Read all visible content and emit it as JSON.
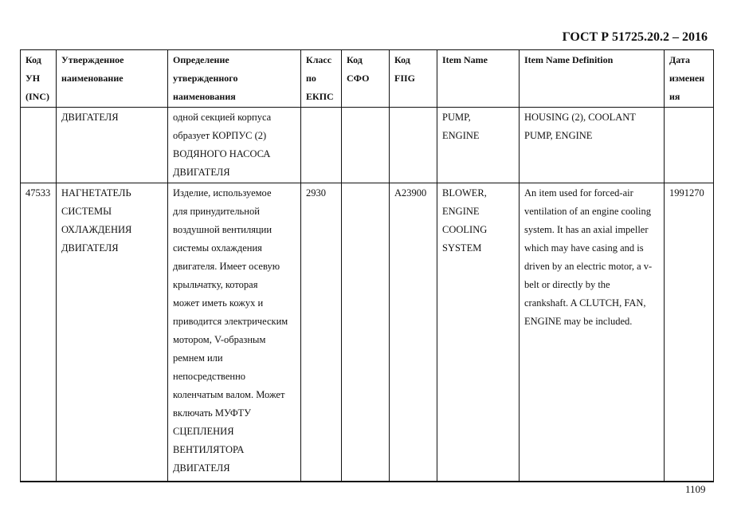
{
  "document_title": "ГОСТ Р 51725.20.2 – 2016",
  "page_number": "1109",
  "table": {
    "headers": [
      "Код\nУН\n(INC)",
      "Утвержденное\nнаименование",
      "Определение\nутвержденного\nнаименования",
      "Класс\nпо\nЕКПС",
      "Код\nСФО",
      "Код\nFIIG",
      "Item Name",
      "Item Name Definition",
      "Дата\nизменен\nия"
    ],
    "rows": [
      [
        "",
        "ДВИГАТЕЛЯ",
        "одной секцией корпуса\nобразует КОРПУС (2)\nВОДЯНОГО НАСОСА\nДВИГАТЕЛЯ",
        "",
        "",
        "",
        "PUMP,\nENGINE",
        "HOUSING (2), COOLANT\nPUMP, ENGINE",
        ""
      ],
      [
        "47533",
        "НАГНЕТАТЕЛЬ\nСИСТЕМЫ\nОХЛАЖДЕНИЯ\nДВИГАТЕЛЯ",
        "Изделие, используемое\nдля принудительной\nвоздушной вентиляции\nсистемы охлаждения\nдвигателя. Имеет осевую\nкрыльчатку, которая\nможет иметь кожух и\nприводится электрическим\nмотором, V-образным\nремнем или\nнепосредственно\nколенчатым валом. Может\nвключать МУФТУ\nСЦЕПЛЕНИЯ\nВЕНТИЛЯТОРА\nДВИГАТЕЛЯ",
        "2930",
        "",
        "A23900",
        "BLOWER,\nENGINE\nCOOLING\nSYSTEM",
        "An item used for forced-air\nventilation of an engine cooling\nsystem. It has an axial impeller\nwhich may have casing and is\ndriven by an electric motor, a v-\nbelt or directly by the\ncrankshaft. A CLUTCH, FAN,\nENGINE may be included.",
        "1991270"
      ]
    ]
  }
}
